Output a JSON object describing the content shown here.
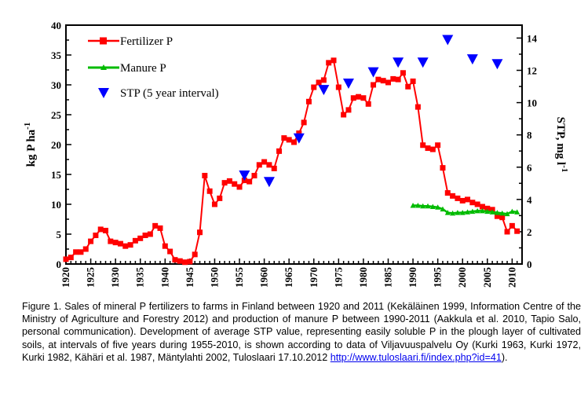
{
  "chart_data": {
    "type": "line",
    "title": "",
    "ylabel": "kg P ha",
    "ylabel_sup": "-1",
    "y2label": "STP, mg l",
    "y2label_sup": "-1",
    "xlim": [
      1920,
      2012
    ],
    "ylim": [
      0,
      40
    ],
    "y2lim": [
      0,
      14.8
    ],
    "x_ticks": [
      1920,
      1925,
      1930,
      1935,
      1940,
      1945,
      1950,
      1955,
      1960,
      1965,
      1970,
      1975,
      1980,
      1985,
      1990,
      1995,
      2000,
      2005,
      2010
    ],
    "x_tick_labels": [
      "1920",
      "1925",
      "1930",
      "1935",
      "1940",
      "1945",
      "1950",
      "1955",
      "1960",
      "1965",
      "1970",
      "1975",
      "1980",
      "1985",
      "1990",
      "1995",
      "2000",
      "2005",
      "2010"
    ],
    "y_ticks": [
      0,
      5,
      10,
      15,
      20,
      25,
      30,
      35,
      40
    ],
    "y_tick_labels": [
      "0",
      "5",
      "10",
      "15",
      "20",
      "25",
      "30",
      "35",
      "40"
    ],
    "y2_ticks": [
      0,
      2,
      4,
      6,
      8,
      10,
      12,
      14
    ],
    "y2_tick_labels": [
      "0",
      "2",
      "4",
      "6",
      "8",
      "10",
      "12",
      "14"
    ],
    "legend_position": "top-left",
    "grid": false,
    "series": [
      {
        "name": "Fertilizer P",
        "axis": "left",
        "color": "#ff0000",
        "marker": "square",
        "x": [
          1920,
          1921,
          1922,
          1923,
          1924,
          1925,
          1926,
          1927,
          1928,
          1929,
          1930,
          1931,
          1932,
          1933,
          1934,
          1935,
          1936,
          1937,
          1938,
          1939,
          1940,
          1941,
          1942,
          1943,
          1944,
          1945,
          1946,
          1947,
          1948,
          1949,
          1950,
          1951,
          1952,
          1953,
          1954,
          1955,
          1956,
          1957,
          1958,
          1959,
          1960,
          1961,
          1962,
          1963,
          1964,
          1965,
          1966,
          1967,
          1968,
          1969,
          1970,
          1971,
          1972,
          1973,
          1974,
          1975,
          1976,
          1977,
          1978,
          1979,
          1980,
          1981,
          1982,
          1983,
          1984,
          1985,
          1986,
          1987,
          1988,
          1989,
          1990,
          1991,
          1992,
          1993,
          1994,
          1995,
          1996,
          1997,
          1998,
          1999,
          2000,
          2001,
          2002,
          2003,
          2004,
          2005,
          2006,
          2007,
          2008,
          2009,
          2010,
          2011
        ],
        "values": [
          0.8,
          1.1,
          2.0,
          2.0,
          2.5,
          3.8,
          4.8,
          5.8,
          5.6,
          3.8,
          3.6,
          3.4,
          3.0,
          3.2,
          3.9,
          4.3,
          4.8,
          5.0,
          6.4,
          6.0,
          3.0,
          2.1,
          0.7,
          0.5,
          0.3,
          0.4,
          1.6,
          5.3,
          14.8,
          12.2,
          10.0,
          11.0,
          13.6,
          13.9,
          13.4,
          12.9,
          14.0,
          13.8,
          14.8,
          16.6,
          17.1,
          16.6,
          16.0,
          18.9,
          21.1,
          20.8,
          20.4,
          21.9,
          23.7,
          27.2,
          29.6,
          30.4,
          30.8,
          33.7,
          34.1,
          29.6,
          25.0,
          25.8,
          27.8,
          28.0,
          27.8,
          26.8,
          30.0,
          30.9,
          30.7,
          30.4,
          31.0,
          30.9,
          32.0,
          29.7,
          30.6,
          26.3,
          19.9,
          19.4,
          19.2,
          19.9,
          16.1,
          11.9,
          11.4,
          11.0,
          10.6,
          10.8,
          10.3,
          10.0,
          9.6,
          9.3,
          9.1,
          8.0,
          7.8,
          5.4,
          6.4,
          5.5
        ]
      },
      {
        "name": "Manure P",
        "axis": "left",
        "color": "#00bb00",
        "marker": "triangle",
        "x": [
          1990,
          1991,
          1992,
          1993,
          1994,
          1995,
          1996,
          1997,
          1998,
          1999,
          2000,
          2001,
          2002,
          2003,
          2004,
          2005,
          2006,
          2007,
          2008,
          2009,
          2010,
          2011
        ],
        "values": [
          9.8,
          9.8,
          9.7,
          9.7,
          9.6,
          9.5,
          9.2,
          8.6,
          8.5,
          8.6,
          8.6,
          8.7,
          8.8,
          8.9,
          8.9,
          8.8,
          8.7,
          8.6,
          8.5,
          8.4,
          8.8,
          8.7
        ]
      },
      {
        "name": "STP (5 year interval)",
        "axis": "right",
        "color": "#0000ff",
        "marker": "triangle-down",
        "x": [
          1956,
          1961,
          1967,
          1972,
          1977,
          1982,
          1987,
          1992,
          1997,
          2002,
          2007
        ],
        "values": [
          5.5,
          5.1,
          7.8,
          10.8,
          11.2,
          11.9,
          12.5,
          12.5,
          13.9,
          12.7,
          12.4
        ]
      }
    ]
  },
  "caption": {
    "text": "Figure 1. Sales of mineral P fertilizers to farms in Finland between 1920 and 2011 (Kekäläinen 1999, Information Centre of the Ministry of Agriculture and Forestry 2012) and production of manure P between 1990-2011 (Aakkula et al. 2010, Tapio Salo, personal communication). Development of average STP value, representing easily soluble P in the plough layer of cultivated soils, at intervals of five years during 1955-2010, is shown according to data of Viljavuuspalvelu Oy (Kurki 1963, Kurki 1972, Kurki 1982, Kähäri et al. 1987, Mäntylahti 2002, Tuloslaari 17.10.2012 ",
    "link_text": "http://www.tuloslaari.fi/index.php?id=41",
    "tail": ")."
  }
}
